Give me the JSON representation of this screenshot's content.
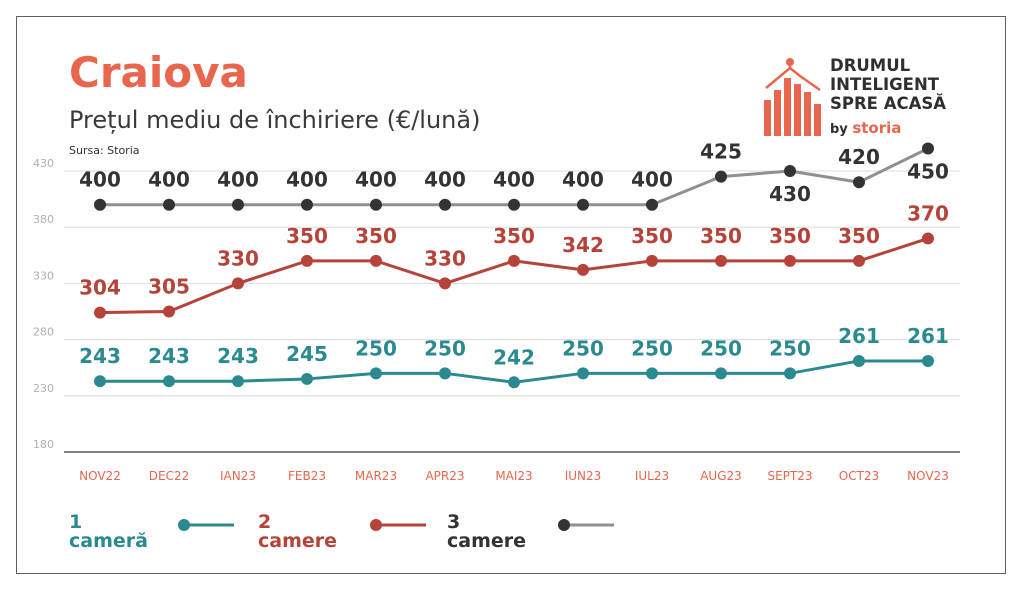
{
  "header": {
    "city": "Craiova",
    "subtitle": "Prețul mediu de închiriere (€/lună)",
    "source": "Sursa: Storia"
  },
  "logo": {
    "line1": "DRUMUL",
    "line2": "INTELIGENT",
    "line3": "SPRE ACASĂ",
    "by": "by",
    "brand": "storia"
  },
  "colors": {
    "accent": "#e8654e",
    "series1": "#2b8a8f",
    "series2": "#b5433a",
    "series3_line": "#8f8f94",
    "series3_marker": "#333333",
    "series3_label": "#333333",
    "tick": "#e8654e",
    "ytick": "#b0b0b0",
    "grid": "#dddddd"
  },
  "chart_data": {
    "type": "line",
    "categories": [
      "NOV22",
      "DEC22",
      "IAN23",
      "FEB23",
      "MAR23",
      "APR23",
      "MAI23",
      "IUN23",
      "IUL23",
      "AUG23",
      "SEPT23",
      "OCT23",
      "NOV23"
    ],
    "ylim": [
      180,
      430
    ],
    "yticks": [
      180,
      230,
      280,
      330,
      380,
      430
    ],
    "grid": true,
    "legend_position": "bottom-left",
    "series": [
      {
        "name": "1 cameră",
        "values": [
          243,
          243,
          243,
          245,
          250,
          250,
          242,
          250,
          250,
          250,
          250,
          261,
          261
        ]
      },
      {
        "name": "2 camere",
        "values": [
          304,
          305,
          330,
          350,
          350,
          330,
          350,
          342,
          350,
          350,
          350,
          350,
          370
        ]
      },
      {
        "name": "3 camere",
        "values": [
          400,
          400,
          400,
          400,
          400,
          400,
          400,
          400,
          400,
          425,
          430,
          420,
          450
        ]
      }
    ]
  }
}
